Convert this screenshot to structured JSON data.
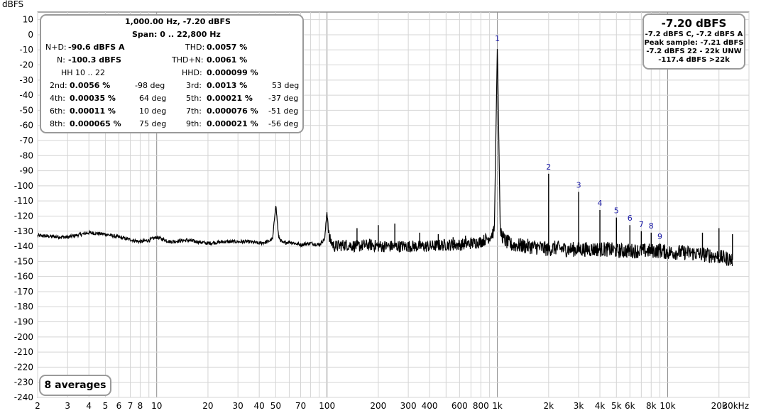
{
  "window": {
    "y_unit_label": "dBFS"
  },
  "distortion": {
    "title": "1,000.00 Hz, -7.20 dBFS",
    "span": "Span: 0 .. 22,800 Hz",
    "nd_label": "N+D:",
    "nd_value": "-90.6 dBFS A",
    "thd_label": "THD:",
    "thd_value": "0.0057 %",
    "n_label": "N:",
    "n_value": "-100.3 dBFS",
    "thdn_label": "THD+N:",
    "thdn_value": "0.0061 %",
    "hh_label": "HH 10 .. 22",
    "hhd_label": "HHD:",
    "hhd_value": "0.000099 %",
    "harmonics": [
      {
        "label": "2nd:",
        "value": "0.0056 %",
        "phase": "-98 deg"
      },
      {
        "label": "3rd:",
        "value": "0.0013 %",
        "phase": "53 deg"
      },
      {
        "label": "4th:",
        "value": "0.00035 %",
        "phase": "64 deg"
      },
      {
        "label": "5th:",
        "value": "0.00021 %",
        "phase": "-37 deg"
      },
      {
        "label": "6th:",
        "value": "0.00011 %",
        "phase": "10 deg"
      },
      {
        "label": "7th:",
        "value": "0.000076 %",
        "phase": "-51 deg"
      },
      {
        "label": "8th:",
        "value": "0.000065 %",
        "phase": "75 deg"
      },
      {
        "label": "9th:",
        "value": "0.000021 %",
        "phase": "-56 deg"
      }
    ]
  },
  "level": {
    "headline": "-7.20 dBFS",
    "lines": [
      "-7.2 dBFS C, -7.2 dBFS A",
      "Peak sample: -7.21 dBFS",
      "-7.2 dBFS 22 - 22k UNW",
      "-117.4 dBFS >22k"
    ]
  },
  "averages_label": "8 averages",
  "colors": {
    "trace": "#000000",
    "harmonic_label": "#1a1aa6",
    "grid_major": "#8c8c8c",
    "grid_minor": "#d4d4d4",
    "box_border": "#9a9a9a"
  },
  "chart_data": {
    "type": "line",
    "title": "",
    "ylabel": "dBFS",
    "xlabel": "",
    "x_scale": "log",
    "xlim": [
      2,
      30000
    ],
    "ylim": [
      -240,
      15
    ],
    "grid": true,
    "y_ticks": [
      "10",
      "0",
      "-10",
      "-20",
      "-30",
      "-40",
      "-50",
      "-60",
      "-70",
      "-80",
      "-90",
      "-100",
      "-110",
      "-120",
      "-130",
      "-140",
      "-150",
      "-160",
      "-170",
      "-180",
      "-190",
      "-200",
      "-210",
      "-220",
      "-230",
      "-240"
    ],
    "x_ticks": [
      {
        "value": 2,
        "label": "2"
      },
      {
        "value": 3,
        "label": "3"
      },
      {
        "value": 4,
        "label": "4"
      },
      {
        "value": 5,
        "label": "5"
      },
      {
        "value": 6,
        "label": "6"
      },
      {
        "value": 7,
        "label": "7"
      },
      {
        "value": 8,
        "label": "8"
      },
      {
        "value": 10,
        "label": "10"
      },
      {
        "value": 20,
        "label": "20"
      },
      {
        "value": 30,
        "label": "30"
      },
      {
        "value": 40,
        "label": "40"
      },
      {
        "value": 50,
        "label": "50"
      },
      {
        "value": 70,
        "label": "70"
      },
      {
        "value": 100,
        "label": "100"
      },
      {
        "value": 200,
        "label": "200"
      },
      {
        "value": 300,
        "label": "300"
      },
      {
        "value": 400,
        "label": "400"
      },
      {
        "value": 600,
        "label": "600"
      },
      {
        "value": 800,
        "label": "800"
      },
      {
        "value": 1000,
        "label": "1k"
      },
      {
        "value": 2000,
        "label": "2k"
      },
      {
        "value": 3000,
        "label": "3k"
      },
      {
        "value": 4000,
        "label": "4k"
      },
      {
        "value": 5000,
        "label": "5k"
      },
      {
        "value": 6000,
        "label": "6k"
      },
      {
        "value": 8000,
        "label": "8k"
      },
      {
        "value": 10000,
        "label": "10k"
      },
      {
        "value": 20000,
        "label": "20k"
      },
      {
        "value": 30000,
        "label": "30kHz"
      }
    ],
    "series": [
      {
        "x": [
          2,
          3,
          4,
          5,
          6,
          8,
          9,
          10,
          12,
          15,
          20,
          25,
          30,
          35,
          40,
          45,
          48,
          50,
          52,
          55,
          60,
          70,
          80,
          90,
          97,
          100,
          103,
          110,
          130,
          150,
          180,
          200,
          220,
          250,
          300,
          400,
          500,
          600,
          700,
          800,
          900,
          960,
          1000,
          1040,
          1100,
          1200,
          1500,
          1800,
          2000,
          2200,
          2500,
          3000,
          3500,
          4000,
          4500,
          5000,
          6000,
          7000,
          8000,
          9000,
          10000,
          12000,
          15000,
          18000,
          20000,
          22000,
          24000
        ],
        "y": [
          -133,
          -134,
          -131,
          -132,
          -134,
          -137,
          -136,
          -134,
          -137,
          -136,
          -138,
          -137,
          -137,
          -137,
          -138,
          -137,
          -135,
          -112,
          -134,
          -138,
          -137,
          -139,
          -138,
          -139,
          -135,
          -116,
          -135,
          -140,
          -139,
          -140,
          -139,
          -140,
          -140,
          -140,
          -140,
          -140,
          -139,
          -139,
          -138,
          -137,
          -134,
          -130,
          -7,
          -130,
          -136,
          -139,
          -140,
          -141,
          -142,
          -141,
          -142,
          -142,
          -142,
          -142,
          -142,
          -143,
          -143,
          -143,
          -143,
          -143,
          -144,
          -144,
          -145,
          -146,
          -147,
          -148,
          -149
        ]
      }
    ],
    "spectral_spikes": [
      {
        "x": 150,
        "y": -128
      },
      {
        "x": 200,
        "y": -126
      },
      {
        "x": 250,
        "y": -125
      },
      {
        "x": 350,
        "y": -131
      },
      {
        "x": 450,
        "y": -132
      },
      {
        "x": 550,
        "y": -134
      },
      {
        "x": 650,
        "y": -133
      },
      {
        "x": 16000,
        "y": -131
      },
      {
        "x": 20000,
        "y": -128
      },
      {
        "x": 24000,
        "y": -132
      }
    ],
    "harmonic_peaks": [
      {
        "label": "1",
        "x": 1000,
        "y": -7
      },
      {
        "label": "2",
        "x": 2000,
        "y": -92
      },
      {
        "label": "3",
        "x": 3000,
        "y": -104
      },
      {
        "label": "4",
        "x": 4000,
        "y": -116
      },
      {
        "label": "5",
        "x": 5000,
        "y": -121
      },
      {
        "label": "6",
        "x": 6000,
        "y": -126
      },
      {
        "label": "7",
        "x": 7000,
        "y": -130
      },
      {
        "label": "8",
        "x": 8000,
        "y": -131
      },
      {
        "label": "9",
        "x": 9000,
        "y": -138
      }
    ]
  }
}
